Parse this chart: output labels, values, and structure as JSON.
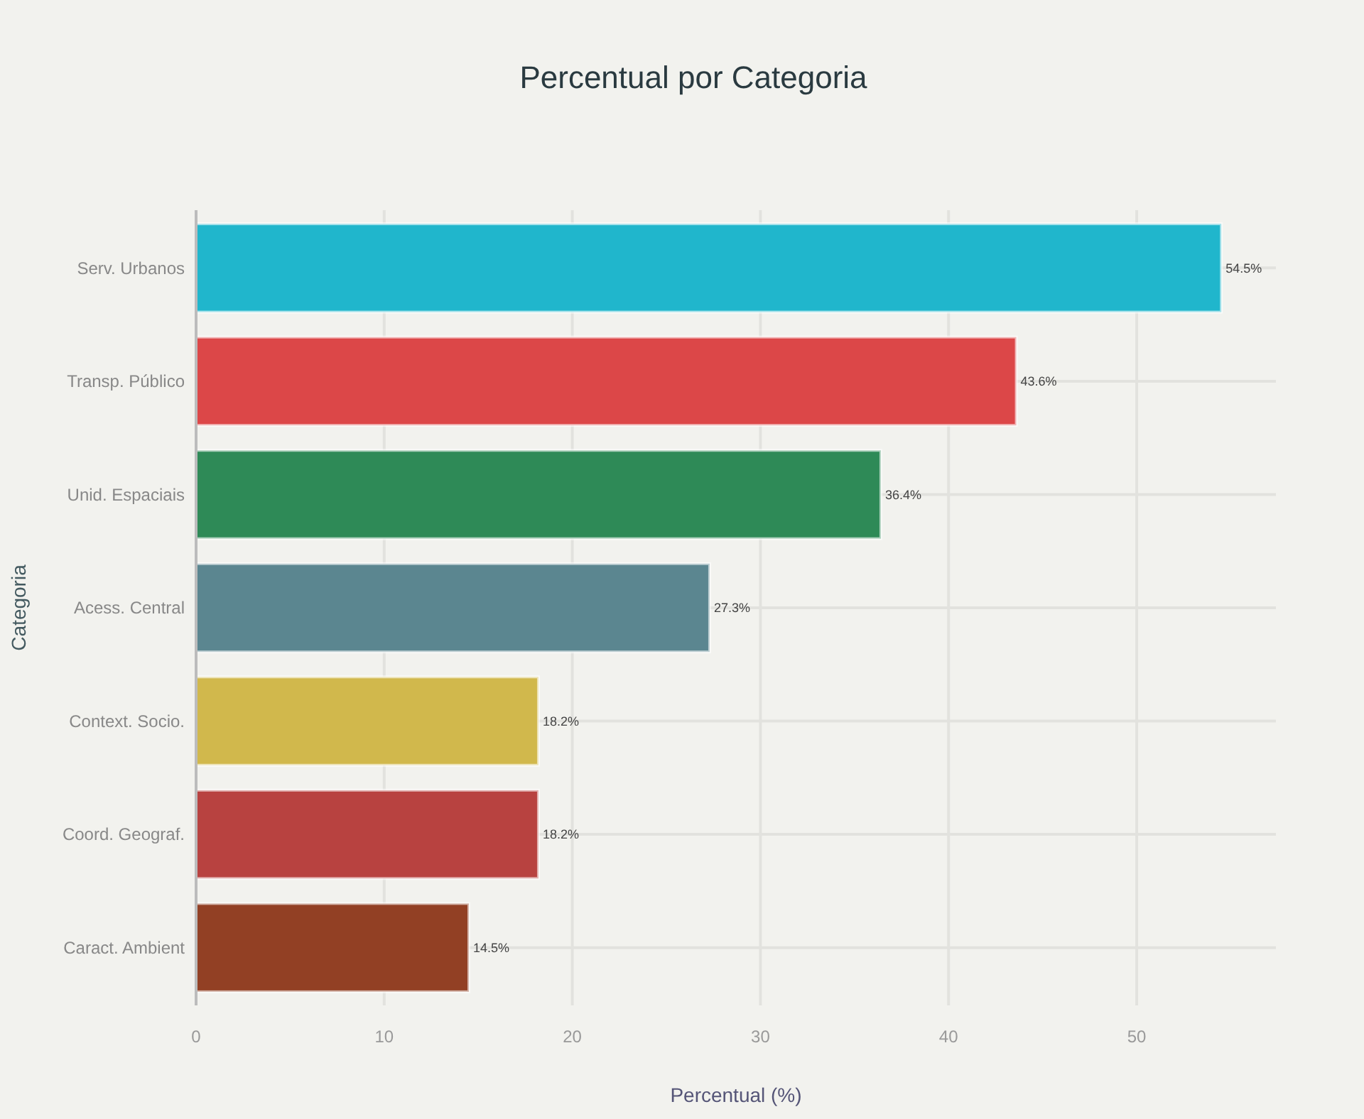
{
  "chart_data": {
    "type": "bar",
    "orientation": "horizontal",
    "title": "Percentual por Categoria",
    "xlabel": "Percentual (%)",
    "ylabel": "Categoria",
    "categories": [
      "Serv. Urbanos",
      "Transp. Público",
      "Unid. Espaciais",
      "Acess. Central",
      "Context. Socio.",
      "Coord. Geograf.",
      "Caract. Ambient"
    ],
    "values": [
      54.5,
      43.6,
      36.4,
      27.3,
      18.2,
      18.2,
      14.5
    ],
    "colors": [
      "#20b6cc",
      "#dc4748",
      "#2e8a57",
      "#5b8690",
      "#d1b84c",
      "#b84240",
      "#924024"
    ],
    "value_labels": [
      "54.5%",
      "43.6%",
      "36.4%",
      "27.3%",
      "18.2%",
      "18.2%",
      "14.5%"
    ],
    "xlim": [
      0,
      57.4
    ],
    "xticks": [
      0,
      10,
      20,
      30,
      40,
      50
    ],
    "grid": true
  }
}
